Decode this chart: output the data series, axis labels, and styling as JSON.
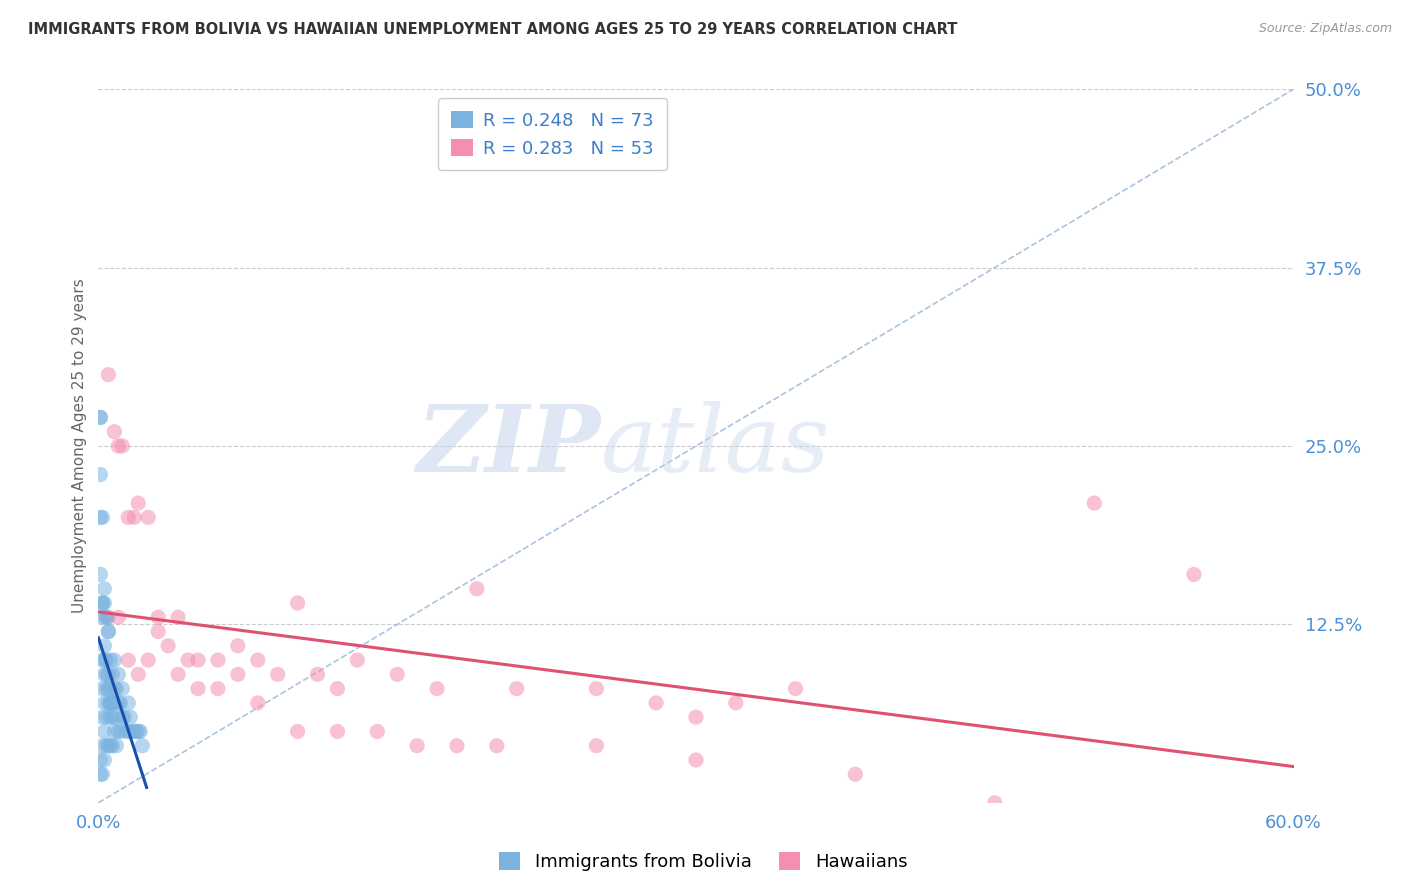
{
  "title": "IMMIGRANTS FROM BOLIVIA VS HAWAIIAN UNEMPLOYMENT AMONG AGES 25 TO 29 YEARS CORRELATION CHART",
  "source": "Source: ZipAtlas.com",
  "ylabel": "Unemployment Among Ages 25 to 29 years",
  "xlim": [
    0.0,
    0.6
  ],
  "ylim": [
    0.0,
    0.5
  ],
  "xtick_labels": [
    "0.0%",
    "60.0%"
  ],
  "yticks_right": [
    0.125,
    0.25,
    0.375,
    0.5
  ],
  "ytick_right_labels": [
    "12.5%",
    "25.0%",
    "37.5%",
    "50.0%"
  ],
  "watermark_zip": "ZIP",
  "watermark_atlas": "atlas",
  "series1_name": "Immigrants from Bolivia",
  "series1_R": 0.248,
  "series1_N": 73,
  "series1_color": "#7ab3e0",
  "series1_line_color": "#1a4faa",
  "series2_name": "Hawaiians",
  "series2_R": 0.283,
  "series2_N": 53,
  "series2_color": "#f48fb1",
  "series2_line_color": "#e05070",
  "legend_color": "#3d7ecc",
  "title_color": "#333333",
  "axis_label_color": "#666666",
  "tick_label_color": "#4a90d9",
  "grid_color": "#cccccc",
  "background_color": "#ffffff",
  "bolivia_x": [
    0.001,
    0.001,
    0.001,
    0.001,
    0.001,
    0.002,
    0.002,
    0.002,
    0.002,
    0.002,
    0.002,
    0.002,
    0.003,
    0.003,
    0.003,
    0.003,
    0.003,
    0.003,
    0.004,
    0.004,
    0.004,
    0.004,
    0.004,
    0.005,
    0.005,
    0.005,
    0.005,
    0.006,
    0.006,
    0.006,
    0.006,
    0.006,
    0.007,
    0.007,
    0.007,
    0.007,
    0.008,
    0.008,
    0.008,
    0.009,
    0.009,
    0.009,
    0.01,
    0.01,
    0.01,
    0.011,
    0.011,
    0.012,
    0.012,
    0.013,
    0.014,
    0.015,
    0.015,
    0.016,
    0.017,
    0.018,
    0.019,
    0.02,
    0.021,
    0.022,
    0.001,
    0.001,
    0.002,
    0.002,
    0.003,
    0.003,
    0.004,
    0.004,
    0.005,
    0.005,
    0.006,
    0.007,
    0.008
  ],
  "bolivia_y": [
    0.27,
    0.27,
    0.23,
    0.03,
    0.02,
    0.14,
    0.13,
    0.1,
    0.08,
    0.06,
    0.04,
    0.02,
    0.14,
    0.11,
    0.09,
    0.07,
    0.05,
    0.03,
    0.13,
    0.1,
    0.08,
    0.06,
    0.04,
    0.12,
    0.09,
    0.07,
    0.04,
    0.1,
    0.08,
    0.07,
    0.06,
    0.04,
    0.09,
    0.07,
    0.06,
    0.04,
    0.1,
    0.08,
    0.05,
    0.08,
    0.06,
    0.04,
    0.09,
    0.07,
    0.05,
    0.07,
    0.05,
    0.08,
    0.06,
    0.06,
    0.05,
    0.07,
    0.05,
    0.06,
    0.05,
    0.05,
    0.05,
    0.05,
    0.05,
    0.04,
    0.2,
    0.16,
    0.2,
    0.14,
    0.15,
    0.1,
    0.13,
    0.09,
    0.12,
    0.08,
    0.07,
    0.07,
    0.07
  ],
  "hawaii_x": [
    0.005,
    0.008,
    0.01,
    0.012,
    0.015,
    0.018,
    0.02,
    0.025,
    0.03,
    0.035,
    0.04,
    0.045,
    0.05,
    0.06,
    0.07,
    0.08,
    0.09,
    0.1,
    0.11,
    0.12,
    0.13,
    0.15,
    0.17,
    0.19,
    0.21,
    0.25,
    0.28,
    0.3,
    0.32,
    0.35,
    0.005,
    0.01,
    0.015,
    0.02,
    0.025,
    0.03,
    0.04,
    0.05,
    0.06,
    0.07,
    0.08,
    0.1,
    0.12,
    0.14,
    0.16,
    0.18,
    0.2,
    0.25,
    0.3,
    0.38,
    0.45,
    0.5,
    0.55
  ],
  "hawaii_y": [
    0.3,
    0.26,
    0.25,
    0.25,
    0.2,
    0.2,
    0.21,
    0.2,
    0.13,
    0.11,
    0.13,
    0.1,
    0.1,
    0.1,
    0.11,
    0.1,
    0.09,
    0.14,
    0.09,
    0.08,
    0.1,
    0.09,
    0.08,
    0.15,
    0.08,
    0.08,
    0.07,
    0.06,
    0.07,
    0.08,
    0.13,
    0.13,
    0.1,
    0.09,
    0.1,
    0.12,
    0.09,
    0.08,
    0.08,
    0.09,
    0.07,
    0.05,
    0.05,
    0.05,
    0.04,
    0.04,
    0.04,
    0.04,
    0.03,
    0.02,
    0.0,
    0.21,
    0.16
  ],
  "diag_line_color": "#aac4e0",
  "diag_line_style": "--"
}
